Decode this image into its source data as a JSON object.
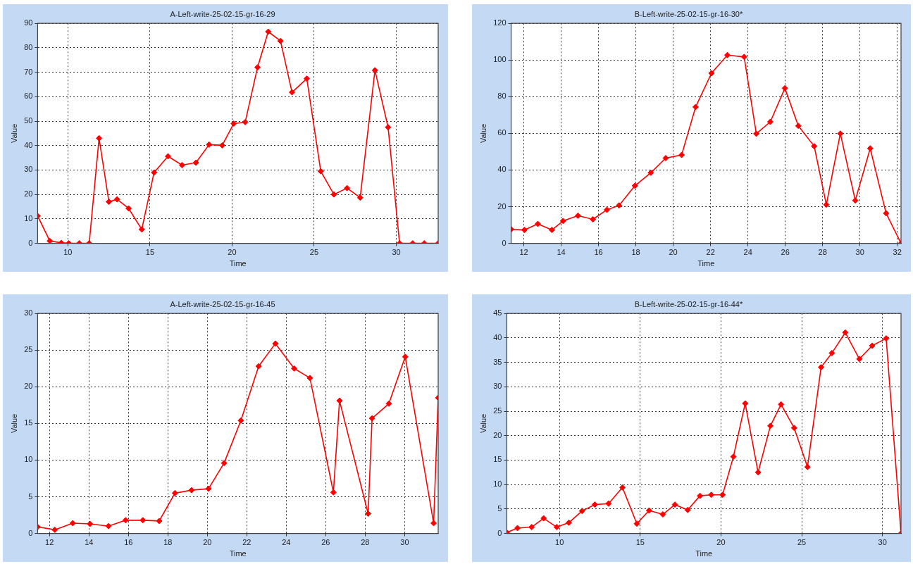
{
  "chart_data": [
    {
      "type": "line",
      "title": "A-Left-write-25-02-15-gr-16-29",
      "xlabel": "Time",
      "ylabel": "Value",
      "grid": true,
      "marker": "diamond",
      "line_style": "solid",
      "xlim": [
        8.16,
        32.55
      ],
      "ylim": [
        0,
        90
      ],
      "xticks": [
        10,
        15,
        20,
        25,
        30
      ],
      "yticks": [
        0,
        10,
        20,
        30,
        40,
        50,
        60,
        70,
        80,
        90
      ],
      "x": [
        8.16,
        8.9,
        9.6,
        10.05,
        10.7,
        11.3,
        11.9,
        12.5,
        13.0,
        13.7,
        14.5,
        15.25,
        16.1,
        16.95,
        17.8,
        18.6,
        19.4,
        20.1,
        20.8,
        21.55,
        22.2,
        22.95,
        23.65,
        24.55,
        25.4,
        26.2,
        27.0,
        27.8,
        28.7,
        29.5,
        30.2,
        31.0,
        31.7,
        32.55
      ],
      "series": [
        {
          "color": "#ff0000",
          "values": [
            11.2,
            1,
            0.2,
            0,
            0,
            0,
            43,
            17,
            18,
            14.3,
            5.7,
            29,
            35.6,
            32,
            33,
            40.4,
            40.1,
            49,
            49.6,
            72,
            86.6,
            82.8,
            61.8,
            67.4,
            29.5,
            20,
            22.6,
            18.7,
            70.8,
            47.5,
            0,
            0,
            0,
            0
          ]
        }
      ]
    },
    {
      "type": "line",
      "title": "B-Left-write-25-02-15-gr-16-30*",
      "xlabel": "Time",
      "ylabel": "Value",
      "grid": true,
      "marker": "diamond",
      "line_style": "solid",
      "xlim": [
        11.32,
        32.2
      ],
      "ylim": [
        0,
        120
      ],
      "xticks": [
        12,
        14,
        16,
        18,
        20,
        22,
        24,
        26,
        28,
        30,
        32
      ],
      "yticks": [
        0,
        20,
        40,
        60,
        80,
        100,
        120
      ],
      "x": [
        11.32,
        12.03,
        12.75,
        13.5,
        14.1,
        14.9,
        15.7,
        16.45,
        17.1,
        17.95,
        18.8,
        19.6,
        20.45,
        21.2,
        22.05,
        22.9,
        23.8,
        24.45,
        25.2,
        25.98,
        26.7,
        27.55,
        28.2,
        28.95,
        29.75,
        30.55,
        31.4,
        32.2
      ],
      "series": [
        {
          "color": "#ff0000",
          "values": [
            7.6,
            7.3,
            10.6,
            7.3,
            12.2,
            15.1,
            13.1,
            18.3,
            20.7,
            31.4,
            38.5,
            46.5,
            48.2,
            74.4,
            92.8,
            102.7,
            101.7,
            59.8,
            66.3,
            84.6,
            64.1,
            53,
            21.1,
            59.9,
            23.4,
            51.8,
            16.4,
            0
          ]
        }
      ]
    },
    {
      "type": "line",
      "title": "A-Left-write-25-02-15-gr-16-45",
      "xlabel": "Time",
      "ylabel": "Value",
      "grid": true,
      "marker": "diamond",
      "line_style": "solid",
      "xlim": [
        11.4,
        31.7
      ],
      "ylim": [
        0,
        30
      ],
      "xticks": [
        12,
        14,
        16,
        18,
        20,
        22,
        24,
        26,
        28,
        30
      ],
      "yticks": [
        0,
        5,
        10,
        15,
        20,
        25,
        30
      ],
      "x": [
        11.4,
        12.27,
        13.18,
        14.05,
        14.99,
        15.86,
        16.73,
        17.56,
        18.36,
        19.2,
        20.06,
        20.85,
        21.7,
        22.6,
        23.45,
        24.4,
        25.2,
        26.39,
        26.7,
        28.15,
        28.35,
        29.2,
        30.03,
        31.47,
        31.7
      ],
      "series": [
        {
          "color": "#ff0000",
          "values": [
            0.9,
            0.5,
            1.4,
            1.3,
            1.0,
            1.8,
            1.8,
            1.7,
            5.5,
            5.9,
            6.1,
            9.6,
            15.4,
            22.8,
            25.9,
            22.5,
            21.2,
            5.6,
            18.1,
            2.7,
            15.7,
            17.7,
            24.1,
            1.4,
            18.5
          ]
        }
      ]
    },
    {
      "type": "line",
      "title": "B-Left-write-25-02-15-gr-16-44*",
      "xlabel": "Time",
      "ylabel": "Value",
      "grid": true,
      "marker": "diamond",
      "line_style": "solid",
      "xlim": [
        6.74,
        31.15
      ],
      "ylim": [
        0,
        45
      ],
      "xticks": [
        10,
        15,
        20,
        25,
        30
      ],
      "yticks": [
        0,
        5,
        10,
        15,
        20,
        25,
        30,
        35,
        40,
        45
      ],
      "x": [
        6.74,
        7.4,
        8.28,
        9.02,
        9.83,
        10.58,
        11.4,
        12.19,
        13.04,
        13.9,
        14.79,
        15.55,
        16.4,
        17.15,
        17.94,
        18.7,
        19.4,
        20.1,
        20.77,
        21.5,
        22.3,
        23.06,
        23.72,
        24.53,
        25.36,
        26.2,
        26.87,
        27.7,
        28.57,
        29.36,
        30.23,
        31.15
      ],
      "series": [
        {
          "color": "#ff0000",
          "values": [
            0.2,
            1.1,
            1.3,
            3.1,
            1.3,
            2.2,
            4.6,
            5.9,
            6.1,
            9.4,
            2.0,
            4.7,
            3.9,
            5.9,
            4.8,
            7.7,
            7.9,
            7.9,
            15.7,
            26.6,
            12.5,
            22.0,
            26.4,
            21.6,
            13.6,
            34.0,
            36.9,
            41.1,
            35.7,
            38.4,
            39.9,
            0
          ]
        }
      ]
    }
  ]
}
